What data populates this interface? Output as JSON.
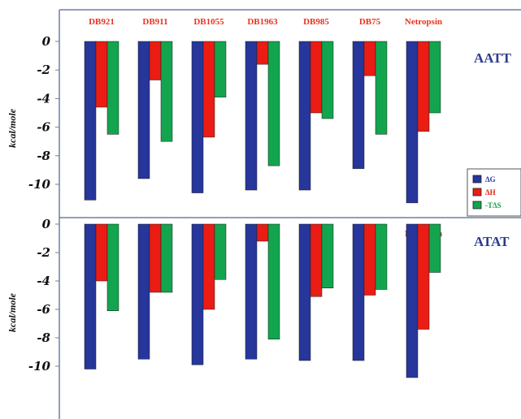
{
  "colors": {
    "delta_g": "#26369a",
    "delta_h": "#ea1c14",
    "minus_tds": "#12a54e",
    "category_text": "#e8331f",
    "panel_label": "#2b3a8f",
    "axis": "#6f7fa0"
  },
  "chart_data": [
    {
      "type": "bar",
      "panel_label": "AATT",
      "ylabel": "kcal/mole",
      "ylim": [
        -11.5,
        1.2
      ],
      "yticks": [
        "0",
        "-2",
        "-4",
        "-6",
        "-8",
        "-10"
      ],
      "categories": [
        "DB921",
        "DB911",
        "DB1055",
        "DB1963",
        "DB985",
        "DB75",
        "Netropsin"
      ],
      "series": [
        {
          "name": "ΔG",
          "values": [
            -11.1,
            -9.6,
            -10.6,
            -10.4,
            -10.4,
            -8.9,
            -11.3
          ]
        },
        {
          "name": "ΔH",
          "values": [
            -4.6,
            -2.7,
            -6.7,
            -1.6,
            -5.0,
            -2.4,
            -6.3
          ]
        },
        {
          "name": "-TΔS",
          "values": [
            -6.5,
            -7.0,
            -3.9,
            -8.7,
            -5.4,
            -6.5,
            -5.0
          ]
        }
      ],
      "legend": {
        "placement": "bottom-right",
        "entries": [
          "ΔG",
          "ΔH",
          "-TΔS"
        ]
      }
    },
    {
      "type": "bar",
      "panel_label": "ATAT",
      "ylabel": "kcal/mole",
      "ylim": [
        -11.5,
        1.2
      ],
      "yticks": [
        "0",
        "-2",
        "-4",
        "-6",
        "-8",
        "-10"
      ],
      "categories": [
        "DB921",
        "DB911",
        "DB1055",
        "DB1963",
        "DB985",
        "DB75",
        "Netropsin"
      ],
      "series": [
        {
          "name": "ΔG",
          "values": [
            -10.2,
            -9.5,
            -9.9,
            -9.5,
            -9.6,
            -9.6,
            -10.8
          ]
        },
        {
          "name": "ΔH",
          "values": [
            -4.0,
            -4.8,
            -6.0,
            -1.2,
            -5.1,
            -5.0,
            -7.4
          ]
        },
        {
          "name": "-TΔS",
          "values": [
            -6.1,
            -4.8,
            -3.9,
            -8.1,
            -4.5,
            -4.6,
            -3.4
          ]
        }
      ]
    }
  ]
}
